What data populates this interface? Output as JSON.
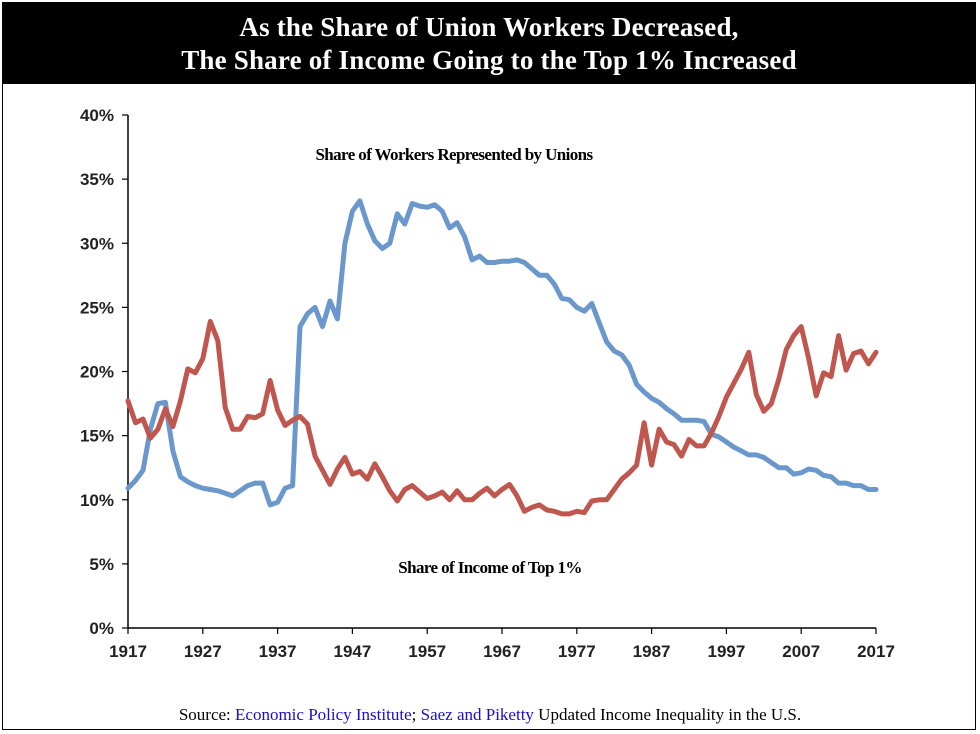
{
  "chart_data": {
    "type": "line",
    "title": [
      "As the Share of Union Workers Decreased,",
      "The Share of Income Going to the Top 1% Increased"
    ],
    "xlim": [
      1917,
      2017
    ],
    "ylim": [
      0,
      40
    ],
    "x_ticks": [
      "1917",
      "1927",
      "1937",
      "1947",
      "1957",
      "1967",
      "1977",
      "1987",
      "1997",
      "2007",
      "2017"
    ],
    "y_ticks": [
      "0%",
      "5%",
      "10%",
      "15%",
      "20%",
      "25%",
      "30%",
      "35%",
      "40%"
    ],
    "grid": false,
    "colors": {
      "unions": "#6a98cc",
      "top1": "#c0574e"
    },
    "series": [
      {
        "name": "Share of Workers Represented by Unions",
        "key": "unions",
        "points": [
          [
            1917,
            10.9
          ],
          [
            1918,
            11.5
          ],
          [
            1919,
            12.3
          ],
          [
            1920,
            15.5
          ],
          [
            1921,
            17.5
          ],
          [
            1922,
            17.6
          ],
          [
            1923,
            13.8
          ],
          [
            1924,
            11.8
          ],
          [
            1925,
            11.4
          ],
          [
            1926,
            11.1
          ],
          [
            1927,
            10.9
          ],
          [
            1928,
            10.8
          ],
          [
            1929,
            10.7
          ],
          [
            1930,
            10.5
          ],
          [
            1931,
            10.3
          ],
          [
            1932,
            10.7
          ],
          [
            1933,
            11.1
          ],
          [
            1934,
            11.3
          ],
          [
            1935,
            11.3
          ],
          [
            1936,
            9.6
          ],
          [
            1937,
            9.8
          ],
          [
            1938,
            10.9
          ],
          [
            1939,
            11.1
          ],
          [
            1940,
            23.5
          ],
          [
            1941,
            24.5
          ],
          [
            1942,
            25.0
          ],
          [
            1943,
            23.5
          ],
          [
            1944,
            25.5
          ],
          [
            1945,
            24.1
          ],
          [
            1946,
            30.0
          ],
          [
            1947,
            32.5
          ],
          [
            1948,
            33.3
          ],
          [
            1949,
            31.5
          ],
          [
            1950,
            30.2
          ],
          [
            1951,
            29.6
          ],
          [
            1952,
            30.0
          ],
          [
            1953,
            32.3
          ],
          [
            1954,
            31.5
          ],
          [
            1955,
            33.1
          ],
          [
            1956,
            32.9
          ],
          [
            1957,
            32.8
          ],
          [
            1958,
            33.0
          ],
          [
            1959,
            32.5
          ],
          [
            1960,
            31.2
          ],
          [
            1961,
            31.6
          ],
          [
            1962,
            30.5
          ],
          [
            1963,
            28.7
          ],
          [
            1964,
            29.0
          ],
          [
            1965,
            28.5
          ],
          [
            1966,
            28.5
          ],
          [
            1967,
            28.6
          ],
          [
            1968,
            28.6
          ],
          [
            1969,
            28.7
          ],
          [
            1970,
            28.5
          ],
          [
            1971,
            28.0
          ],
          [
            1972,
            27.5
          ],
          [
            1973,
            27.5
          ],
          [
            1974,
            26.8
          ],
          [
            1975,
            25.7
          ],
          [
            1976,
            25.6
          ],
          [
            1977,
            25.0
          ],
          [
            1978,
            24.7
          ],
          [
            1979,
            25.3
          ],
          [
            1980,
            23.8
          ],
          [
            1981,
            22.3
          ],
          [
            1982,
            21.6
          ],
          [
            1983,
            21.3
          ],
          [
            1984,
            20.5
          ],
          [
            1985,
            19.0
          ],
          [
            1986,
            18.4
          ],
          [
            1987,
            17.9
          ],
          [
            1988,
            17.6
          ],
          [
            1989,
            17.1
          ],
          [
            1990,
            16.7
          ],
          [
            1991,
            16.2
          ],
          [
            1992,
            16.2
          ],
          [
            1993,
            16.2
          ],
          [
            1994,
            16.1
          ],
          [
            1995,
            15.1
          ],
          [
            1996,
            14.9
          ],
          [
            1997,
            14.5
          ],
          [
            1998,
            14.1
          ],
          [
            1999,
            13.8
          ],
          [
            2000,
            13.5
          ],
          [
            2001,
            13.5
          ],
          [
            2002,
            13.3
          ],
          [
            2003,
            12.9
          ],
          [
            2004,
            12.5
          ],
          [
            2005,
            12.5
          ],
          [
            2006,
            12.0
          ],
          [
            2007,
            12.1
          ],
          [
            2008,
            12.4
          ],
          [
            2009,
            12.3
          ],
          [
            2010,
            11.9
          ],
          [
            2011,
            11.8
          ],
          [
            2012,
            11.3
          ],
          [
            2013,
            11.3
          ],
          [
            2014,
            11.1
          ],
          [
            2015,
            11.1
          ],
          [
            2016,
            10.8
          ],
          [
            2017,
            10.8
          ]
        ]
      },
      {
        "name": "Share of Income of Top 1%",
        "key": "top1",
        "points": [
          [
            1917,
            17.7
          ],
          [
            1918,
            16.0
          ],
          [
            1919,
            16.3
          ],
          [
            1920,
            14.8
          ],
          [
            1921,
            15.5
          ],
          [
            1922,
            17.1
          ],
          [
            1923,
            15.7
          ],
          [
            1924,
            17.7
          ],
          [
            1925,
            20.2
          ],
          [
            1926,
            19.9
          ],
          [
            1927,
            21.0
          ],
          [
            1928,
            23.9
          ],
          [
            1929,
            22.4
          ],
          [
            1930,
            17.2
          ],
          [
            1931,
            15.5
          ],
          [
            1932,
            15.5
          ],
          [
            1933,
            16.5
          ],
          [
            1934,
            16.4
          ],
          [
            1935,
            16.7
          ],
          [
            1936,
            19.3
          ],
          [
            1937,
            17.0
          ],
          [
            1938,
            15.8
          ],
          [
            1939,
            16.2
          ],
          [
            1940,
            16.5
          ],
          [
            1941,
            15.9
          ],
          [
            1942,
            13.4
          ],
          [
            1943,
            12.3
          ],
          [
            1944,
            11.2
          ],
          [
            1945,
            12.4
          ],
          [
            1946,
            13.3
          ],
          [
            1947,
            12.0
          ],
          [
            1948,
            12.2
          ],
          [
            1949,
            11.6
          ],
          [
            1950,
            12.8
          ],
          [
            1951,
            11.8
          ],
          [
            1952,
            10.7
          ],
          [
            1953,
            9.9
          ],
          [
            1954,
            10.8
          ],
          [
            1955,
            11.1
          ],
          [
            1956,
            10.6
          ],
          [
            1957,
            10.1
          ],
          [
            1958,
            10.3
          ],
          [
            1959,
            10.6
          ],
          [
            1960,
            10.0
          ],
          [
            1961,
            10.7
          ],
          [
            1962,
            10.0
          ],
          [
            1963,
            10.0
          ],
          [
            1964,
            10.5
          ],
          [
            1965,
            10.9
          ],
          [
            1966,
            10.3
          ],
          [
            1967,
            10.8
          ],
          [
            1968,
            11.2
          ],
          [
            1969,
            10.3
          ],
          [
            1970,
            9.1
          ],
          [
            1971,
            9.4
          ],
          [
            1972,
            9.6
          ],
          [
            1973,
            9.2
          ],
          [
            1974,
            9.1
          ],
          [
            1975,
            8.9
          ],
          [
            1976,
            8.9
          ],
          [
            1977,
            9.1
          ],
          [
            1978,
            9.0
          ],
          [
            1979,
            9.9
          ],
          [
            1980,
            10.0
          ],
          [
            1981,
            10.0
          ],
          [
            1982,
            10.8
          ],
          [
            1983,
            11.6
          ],
          [
            1984,
            12.1
          ],
          [
            1985,
            12.7
          ],
          [
            1986,
            16.0
          ],
          [
            1987,
            12.7
          ],
          [
            1988,
            15.5
          ],
          [
            1989,
            14.5
          ],
          [
            1990,
            14.3
          ],
          [
            1991,
            13.4
          ],
          [
            1992,
            14.7
          ],
          [
            1993,
            14.2
          ],
          [
            1994,
            14.2
          ],
          [
            1995,
            15.2
          ],
          [
            1996,
            16.5
          ],
          [
            1997,
            18.0
          ],
          [
            1998,
            19.1
          ],
          [
            1999,
            20.2
          ],
          [
            2000,
            21.5
          ],
          [
            2001,
            18.2
          ],
          [
            2002,
            16.9
          ],
          [
            2003,
            17.5
          ],
          [
            2004,
            19.4
          ],
          [
            2005,
            21.7
          ],
          [
            2006,
            22.8
          ],
          [
            2007,
            23.5
          ],
          [
            2008,
            21.0
          ],
          [
            2009,
            18.1
          ],
          [
            2010,
            19.9
          ],
          [
            2011,
            19.6
          ],
          [
            2012,
            22.8
          ],
          [
            2013,
            20.1
          ],
          [
            2014,
            21.4
          ],
          [
            2015,
            21.6
          ],
          [
            2016,
            20.6
          ],
          [
            2017,
            21.5
          ]
        ]
      }
    ],
    "annotations": {
      "unions": "Share of Workers Represented by Unions",
      "top1": "Share of Income of Top 1%"
    }
  },
  "source": {
    "prefix": "Source: ",
    "epi": "Economic Policy Institute",
    "sep": "; ",
    "saez": "Saez and Piketty",
    "suffix": " Updated Income Inequality in the U.S."
  }
}
